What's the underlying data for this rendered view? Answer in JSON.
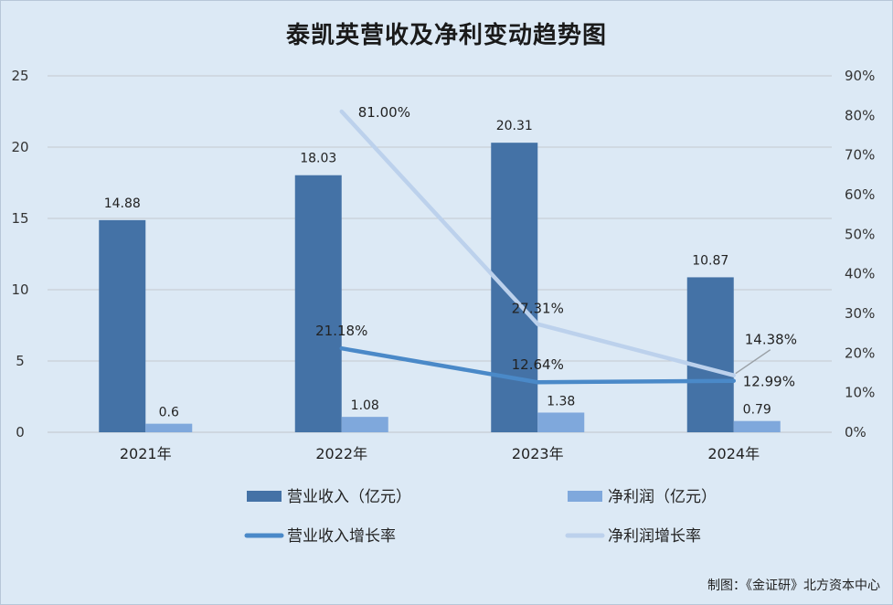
{
  "title": "泰凯英营收及净利变动趋势图",
  "credit": "制图：《金证研》北方资本中心",
  "chart_data": {
    "type": "bar",
    "categories": [
      "2021年",
      "2022年",
      "2023年",
      "2024年"
    ],
    "ylim": [
      0,
      25
    ],
    "y_ticks": [
      "0",
      "5",
      "10",
      "15",
      "20",
      "25"
    ],
    "y2lim": [
      0,
      90
    ],
    "y2_ticks": [
      "0%",
      "10%",
      "20%",
      "30%",
      "40%",
      "50%",
      "60%",
      "70%",
      "80%",
      "90%"
    ],
    "grid": true,
    "legend_position": "bottom",
    "bar_series": [
      {
        "name": "营业收入（亿元）",
        "color": "#4472a6",
        "values": [
          14.88,
          18.03,
          20.31,
          10.87
        ],
        "labels": [
          "14.88",
          "18.03",
          "20.31",
          "10.87"
        ]
      },
      {
        "name": "净利润（亿元）",
        "color": "#7fa8dc",
        "values": [
          0.6,
          1.08,
          1.38,
          0.79
        ],
        "labels": [
          "0.6",
          "1.08",
          "1.38",
          "0.79"
        ]
      }
    ],
    "line_series": [
      {
        "name": "营业收入增长率",
        "color": "#4a89c8",
        "x": [
          "2022年",
          "2023年",
          "2024年"
        ],
        "values": [
          21.18,
          12.64,
          12.99
        ],
        "labels": [
          "21.18%",
          "12.64%",
          "12.99%"
        ]
      },
      {
        "name": "净利润增长率",
        "color": "#bcd1ec",
        "x": [
          "2022年",
          "2023年",
          "2024年"
        ],
        "values": [
          81.0,
          27.31,
          14.38
        ],
        "labels": [
          "81.00%",
          "27.31%",
          "14.38%"
        ]
      }
    ]
  }
}
